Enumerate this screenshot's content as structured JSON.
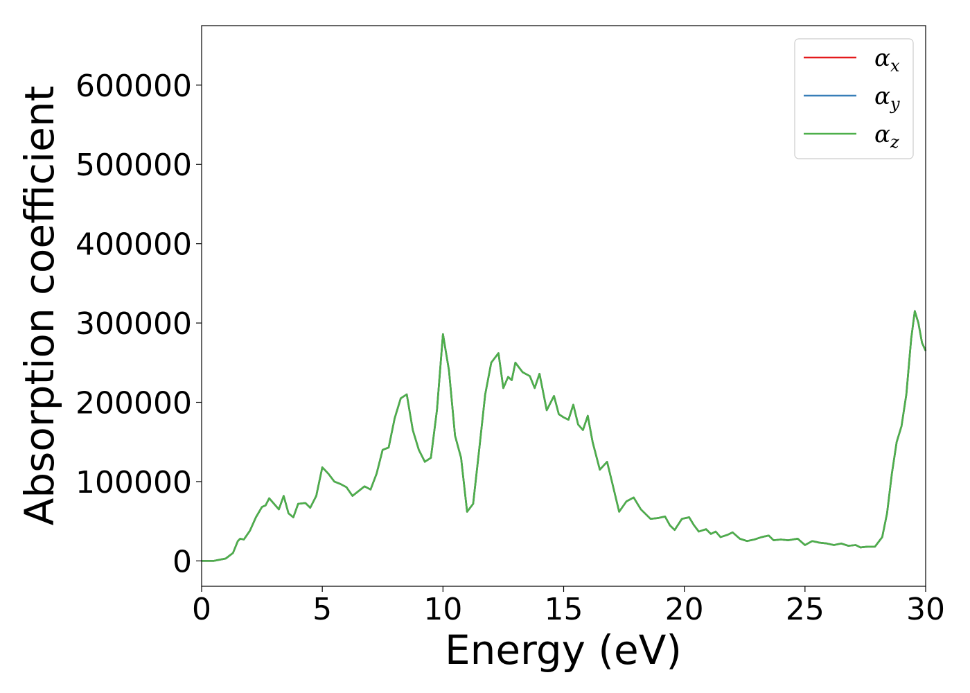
{
  "chart_data": {
    "type": "line",
    "xlabel": "Energy (eV)",
    "ylabel": "Absorption coefficient",
    "xlim": [
      0,
      30
    ],
    "ylim": [
      -32000,
      675000
    ],
    "xticks": [
      0,
      5,
      10,
      15,
      20,
      25,
      30
    ],
    "xtick_labels": [
      "0",
      "5",
      "10",
      "15",
      "20",
      "25",
      "30"
    ],
    "yticks": [
      0,
      100000,
      200000,
      300000,
      400000,
      500000,
      600000
    ],
    "ytick_labels": [
      "0",
      "100000",
      "200000",
      "300000",
      "400000",
      "500000",
      "600000"
    ],
    "grid": false,
    "legend_position": "top-right",
    "series": [
      {
        "name": "α",
        "subscript": "x",
        "color": "#e41a1c",
        "ref": "shared"
      },
      {
        "name": "α",
        "subscript": "y",
        "color": "#377eb8",
        "ref": "shared"
      },
      {
        "name": "α",
        "subscript": "z",
        "color": "#4daf4a",
        "ref": "shared"
      }
    ],
    "x": [
      0,
      0.5,
      1.0,
      1.3,
      1.5,
      1.6,
      1.75,
      2.0,
      2.25,
      2.5,
      2.65,
      2.8,
      3.0,
      3.2,
      3.4,
      3.6,
      3.8,
      4.0,
      4.3,
      4.5,
      4.75,
      5.0,
      5.25,
      5.5,
      5.75,
      6.0,
      6.25,
      6.5,
      6.75,
      7.0,
      7.25,
      7.5,
      7.75,
      8.0,
      8.25,
      8.5,
      8.75,
      9.0,
      9.25,
      9.5,
      9.75,
      10.0,
      10.25,
      10.5,
      10.75,
      11.0,
      11.25,
      11.5,
      11.75,
      12.0,
      12.3,
      12.5,
      12.7,
      12.85,
      13.0,
      13.3,
      13.6,
      13.8,
      14.0,
      14.3,
      14.6,
      14.8,
      15.0,
      15.2,
      15.4,
      15.6,
      15.8,
      16.0,
      16.2,
      16.5,
      16.8,
      17.0,
      17.3,
      17.6,
      17.9,
      18.2,
      18.6,
      18.9,
      19.2,
      19.4,
      19.6,
      19.9,
      20.2,
      20.4,
      20.6,
      20.9,
      21.1,
      21.3,
      21.5,
      21.8,
      22.0,
      22.3,
      22.6,
      22.9,
      23.2,
      23.5,
      23.7,
      24.0,
      24.3,
      24.7,
      25.0,
      25.3,
      25.6,
      25.9,
      26.2,
      26.5,
      26.8,
      27.1,
      27.3,
      27.6,
      27.9,
      28.2,
      28.4,
      28.6,
      28.8,
      29.0,
      29.2,
      29.4,
      29.55,
      29.7,
      29.85,
      30.0
    ],
    "y": [
      0,
      0,
      3000,
      10000,
      25000,
      28000,
      27000,
      38000,
      55000,
      68000,
      70000,
      79000,
      72000,
      65000,
      82000,
      60000,
      55000,
      72000,
      73000,
      67000,
      82000,
      118000,
      110000,
      100000,
      97000,
      93000,
      82000,
      88000,
      94000,
      90000,
      110000,
      140000,
      143000,
      180000,
      205000,
      210000,
      165000,
      140000,
      125000,
      130000,
      190000,
      286000,
      240000,
      158000,
      130000,
      62000,
      72000,
      140000,
      210000,
      250000,
      262000,
      218000,
      232000,
      228000,
      250000,
      238000,
      233000,
      218000,
      236000,
      190000,
      208000,
      185000,
      181000,
      178000,
      197000,
      172000,
      165000,
      183000,
      150000,
      115000,
      125000,
      100000,
      62000,
      75000,
      80000,
      65000,
      53000,
      54000,
      56000,
      45000,
      39000,
      53000,
      55000,
      45000,
      37000,
      40000,
      34000,
      37000,
      30000,
      33000,
      36000,
      28000,
      25000,
      27000,
      30000,
      32000,
      26000,
      27000,
      26000,
      28000,
      20000,
      25000,
      23000,
      22000,
      20000,
      22000,
      19000,
      20000,
      17000,
      18000,
      18000,
      30000,
      60000,
      110000,
      150000,
      170000,
      210000,
      280000,
      315000,
      300000,
      275000,
      265000
    ]
  }
}
